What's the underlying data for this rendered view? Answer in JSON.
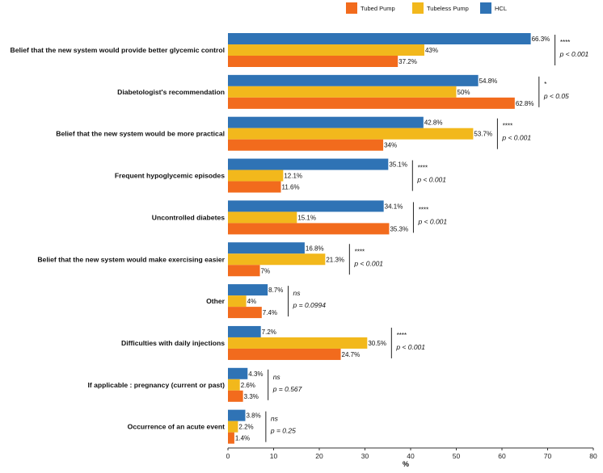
{
  "chart_data": {
    "type": "bar",
    "orientation": "horizontal",
    "xlabel": "%",
    "ylabel": "",
    "xlim": [
      0,
      80
    ],
    "xticks": [
      0,
      10,
      20,
      30,
      40,
      50,
      60,
      70,
      80
    ],
    "legend_position": "top-right",
    "categories": [
      "Belief that the new system would provide better glycemic control",
      "Diabetologist's recommendation",
      "Belief that the new system would be more practical",
      "Frequent hypoglycemic episodes",
      "Uncontrolled diabetes",
      "Belief that the new system would make exercising easier",
      "Other",
      "Difficulties with daily injections",
      "If applicable : pregnancy (current or past)",
      "Occurrence of an acute event"
    ],
    "series": [
      {
        "name": "HCL",
        "color": "#2f73b5",
        "values": [
          66.3,
          54.8,
          42.8,
          35.1,
          34.1,
          16.8,
          8.7,
          7.2,
          4.3,
          3.8
        ],
        "labels": [
          "66.3%",
          "54.8%",
          "42.8%",
          "35.1%",
          "34.1%",
          "16.8%",
          "8.7%",
          "7.2%",
          "4.3%",
          "3.8%"
        ]
      },
      {
        "name": "Tubeless Pump",
        "color": "#f2b81c",
        "values": [
          43,
          50,
          53.7,
          12.1,
          15.1,
          21.3,
          4,
          30.5,
          2.6,
          2.2
        ],
        "labels": [
          "43%",
          "50%",
          "53.7%",
          "12.1%",
          "15.1%",
          "21.3%",
          "4%",
          "30.5%",
          "2.6%",
          "2.2%"
        ]
      },
      {
        "name": "Tubed Pump",
        "color": "#f26b1d",
        "values": [
          37.2,
          62.8,
          34,
          11.6,
          35.3,
          7,
          7.4,
          24.7,
          3.3,
          1.4
        ],
        "labels": [
          "37.2%",
          "62.8%",
          "34%",
          "11.6%",
          "35.3%",
          "7%",
          "7.4%",
          "24.7%",
          "3.3%",
          "1.4%"
        ]
      }
    ],
    "legend": [
      {
        "name": "Tubed Pump",
        "color": "#f26b1d"
      },
      {
        "name": "Tubeless Pump",
        "color": "#f2b81c"
      },
      {
        "name": "HCL",
        "color": "#2f73b5"
      }
    ],
    "annotations": [
      {
        "stars": "****",
        "p": "p < 0.001"
      },
      {
        "stars": "*",
        "p": "p < 0.05"
      },
      {
        "stars": "****",
        "p": "p < 0.001"
      },
      {
        "stars": "****",
        "p": "p < 0.001"
      },
      {
        "stars": "****",
        "p": "p < 0.001"
      },
      {
        "stars": "****",
        "p": "p < 0.001"
      },
      {
        "stars": "ns",
        "p": "p = 0.0994"
      },
      {
        "stars": "****",
        "p": "p < 0.001"
      },
      {
        "stars": "ns",
        "p": "p = 0.567"
      },
      {
        "stars": "ns",
        "p": "p = 0.25"
      }
    ]
  }
}
